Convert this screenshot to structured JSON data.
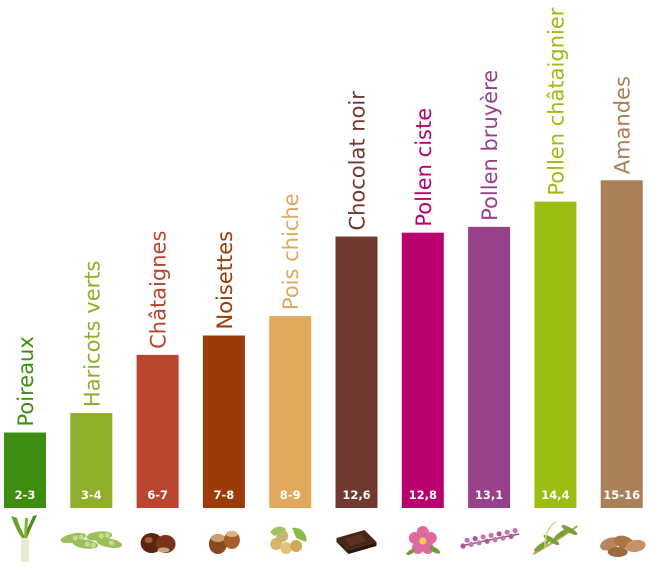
{
  "chart_data": {
    "type": "bar",
    "orientation": "vertical",
    "grid": false,
    "legend": "none",
    "categories": [
      "Poireaux",
      "Haricots verts",
      "Châtaignes",
      "Noisettes",
      "Pois chiche",
      "Chocolat noir",
      "Pollen ciste",
      "Pollen bruyère",
      "Pollen châtaignier",
      "Amandes"
    ],
    "value_labels": [
      "2-3",
      "3-4",
      "6-7",
      "7-8",
      "8-9",
      "12,6",
      "12,8",
      "13,1",
      "14,4",
      "15-16"
    ],
    "values": [
      2.5,
      3.5,
      6.5,
      7.5,
      8.5,
      12.6,
      12.8,
      13.1,
      14.4,
      15.5
    ],
    "colors": [
      "#3d8e10",
      "#8fae2a",
      "#b9452f",
      "#9a3b08",
      "#e0a95e",
      "#703930",
      "#b9006e",
      "#98418b",
      "#9cbd12",
      "#aa8058"
    ],
    "icons": [
      "leek-icon",
      "green-beans-icon",
      "chestnut-icon",
      "hazelnut-icon",
      "chickpea-icon",
      "dark-chocolate-icon",
      "rockrose-flower-icon",
      "heather-icon",
      "chestnut-blossom-icon",
      "almond-icon"
    ],
    "ylim": [
      0,
      17
    ]
  }
}
